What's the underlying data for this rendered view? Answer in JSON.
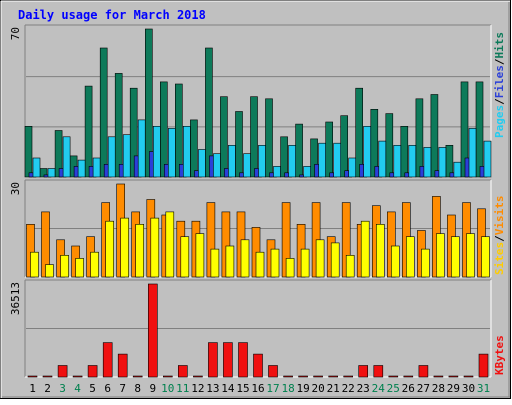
{
  "chart_data": {
    "type": "bar",
    "title": "Daily usage for March 2018",
    "categories": [
      "1",
      "2",
      "3",
      "4",
      "5",
      "6",
      "7",
      "8",
      "9",
      "10",
      "11",
      "12",
      "13",
      "14",
      "15",
      "16",
      "17",
      "18",
      "19",
      "20",
      "21",
      "22",
      "23",
      "24",
      "25",
      "26",
      "27",
      "28",
      "29",
      "30",
      "31"
    ],
    "weekend_days": [
      "3",
      "4",
      "10",
      "11",
      "17",
      "18",
      "24",
      "25",
      "31"
    ],
    "panels": [
      {
        "id": "hits",
        "max_label": "70",
        "ymax": 70,
        "series": [
          {
            "name": "Hits",
            "color": "#0d7a5a",
            "values": [
              24,
              4,
              22,
              10,
              43,
              61,
              49,
              42,
              70,
              45,
              44,
              27,
              61,
              38,
              31,
              38,
              37,
              19,
              25,
              18,
              26,
              29,
              42,
              32,
              30,
              24,
              37,
              39,
              15,
              45,
              45
            ]
          },
          {
            "name": "Files",
            "color": "#2a3fd8",
            "values": [
              2,
              1,
              4,
              5,
              5,
              6,
              6,
              10,
              12,
              6,
              6,
              3,
              10,
              4,
              2,
              4,
              2,
              2,
              1,
              6,
              2,
              3,
              6,
              5,
              2,
              2,
              5,
              3,
              2,
              9,
              5
            ]
          },
          {
            "name": "Pages",
            "color": "#22ccf0",
            "values": [
              9,
              4,
              19,
              8,
              9,
              19,
              20,
              27,
              24,
              23,
              24,
              13,
              11,
              15,
              11,
              15,
              5,
              15,
              5,
              16,
              16,
              9,
              24,
              17,
              15,
              15,
              14,
              14,
              7,
              23,
              17
            ]
          }
        ]
      },
      {
        "id": "visits",
        "max_label": "30",
        "ymax": 30,
        "series": [
          {
            "name": "Visits",
            "color": "#ff8c00",
            "values": [
              17,
              21,
              12,
              10,
              13,
              24,
              30,
              21,
              25,
              20,
              18,
              18,
              24,
              21,
              21,
              16,
              12,
              24,
              17,
              24,
              13,
              24,
              17,
              23,
              21,
              24,
              15,
              26,
              20,
              24,
              22
            ]
          },
          {
            "name": "Sites",
            "color": "#ffff00",
            "values": [
              8,
              4,
              7,
              6,
              8,
              18,
              19,
              17,
              19,
              21,
              13,
              14,
              9,
              10,
              12,
              8,
              9,
              6,
              9,
              12,
              11,
              7,
              18,
              17,
              10,
              13,
              9,
              14,
              13,
              14,
              13
            ]
          }
        ]
      },
      {
        "id": "kbytes",
        "max_label": "36513",
        "ymax": 36513,
        "series": [
          {
            "name": "KBytes",
            "color": "#f01010",
            "values": [
              0,
              0,
              4500,
              0,
              4500,
              13500,
              9000,
              0,
              36513,
              0,
              4500,
              0,
              13500,
              13500,
              13500,
              9000,
              4500,
              0,
              0,
              0,
              0,
              0,
              4500,
              4500,
              0,
              0,
              4500,
              0,
              0,
              0,
              9000
            ]
          }
        ]
      }
    ],
    "right_labels": {
      "pages": "Pages",
      "files": "Files",
      "hits": "Hits",
      "sites": "Sites",
      "visits": "Visits",
      "kbytes": "KBytes",
      "sep": "/"
    },
    "colors": {
      "background": "#c0c0c0",
      "title": "#0000ff",
      "grid": "#808080",
      "weekday_label": "#000000",
      "weekend_label": "#00804e"
    }
  }
}
